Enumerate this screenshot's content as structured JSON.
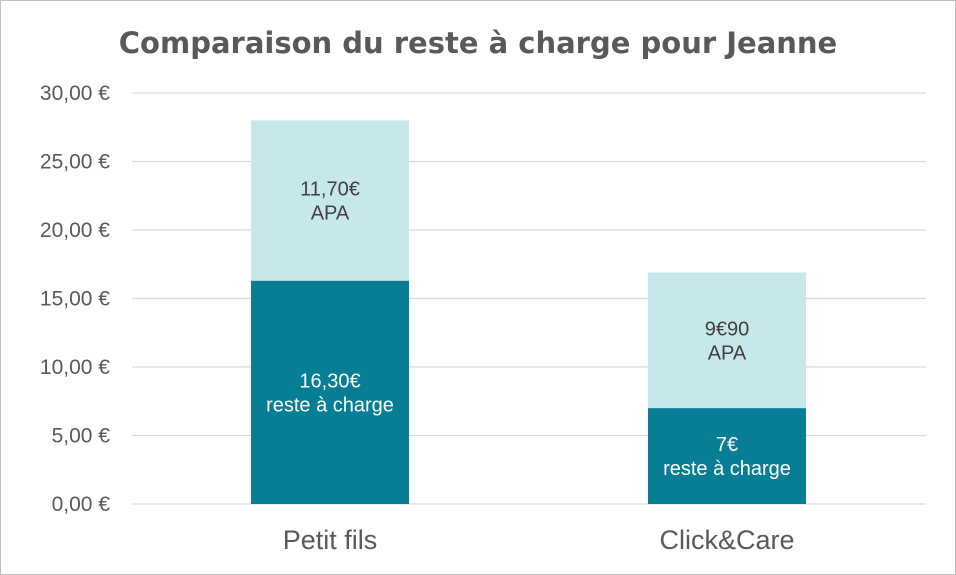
{
  "chart_data": {
    "type": "bar",
    "stacked": true,
    "title": "Comparaison du reste à charge pour Jeanne",
    "categories": [
      "Petit fils",
      "Click&Care"
    ],
    "series": [
      {
        "key": "reste",
        "values": [
          16.3,
          7
        ],
        "color": "#077E95",
        "labels": [
          [
            "16,30€",
            "reste à charge"
          ],
          [
            "7€",
            "reste à charge"
          ]
        ]
      },
      {
        "key": "apa",
        "values": [
          11.7,
          9.9
        ],
        "color": "#C7E8EA",
        "labels": [
          [
            "11,70€",
            "APA"
          ],
          [
            "9€90",
            "APA"
          ]
        ]
      }
    ],
    "ylim": [
      0,
      30
    ],
    "yticks": [
      0,
      5,
      10,
      15,
      20,
      25,
      30
    ],
    "ytick_labels": [
      "0,00 €",
      "5,00 €",
      "10,00 €",
      "15,00 €",
      "20,00 €",
      "25,00 €",
      "30,00 €"
    ],
    "grid": true,
    "legend": "none"
  }
}
